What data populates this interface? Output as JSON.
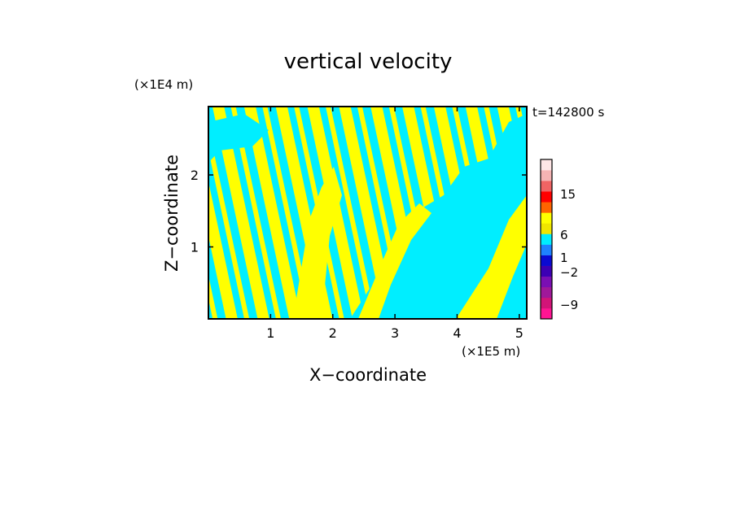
{
  "chart_data": {
    "type": "heatmap",
    "title": "vertical velocity",
    "xlabel": "X−coordinate",
    "ylabel": "Z−coordinate",
    "x_scale_label": "(×1E5 m)",
    "y_scale_label": "(×1E4 m)",
    "time_label": "t=142800 s",
    "xlim": [
      0,
      5.12
    ],
    "ylim": [
      0,
      2.95
    ],
    "x_ticks": [
      "1",
      "2",
      "3",
      "4",
      "5"
    ],
    "y_ticks": [
      "1",
      "2"
    ],
    "field_colors": {
      "positive": "#ffff00",
      "negative": "#00eeff"
    },
    "colorbar": {
      "labels": [
        "15",
        "6",
        "1",
        "−2",
        "−9"
      ],
      "colors": [
        "#ff1493",
        "#d21478",
        "#a0189a",
        "#7a0fb4",
        "#3c00b4",
        "#0a0ad2",
        "#1e82ff",
        "#00eeff",
        "#f0e600",
        "#ffff00",
        "#ff6400",
        "#ff0000",
        "#f06464",
        "#f5b4b4",
        "#ffe6e6"
      ]
    }
  }
}
